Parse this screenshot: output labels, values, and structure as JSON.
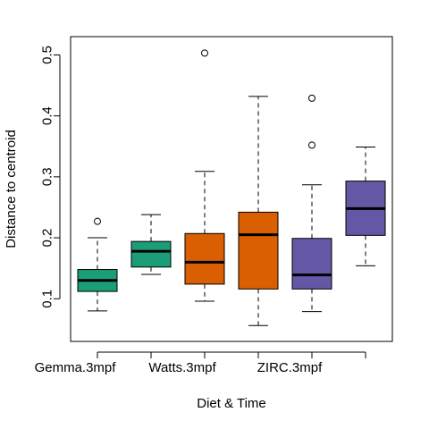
{
  "chart_data": {
    "type": "box",
    "title": "",
    "xlabel": "Diet & Time",
    "ylabel": "Distance to centroid",
    "ylim": [
      0.03,
      0.53
    ],
    "yticks": [
      0.1,
      0.2,
      0.3,
      0.4,
      0.5
    ],
    "ytick_labels": [
      "0.1",
      "0.2",
      "0.3",
      "0.4",
      "0.5"
    ],
    "xtick_labels": [
      {
        "label": "Gemma.3mpf",
        "position": 1.5
      },
      {
        "label": "Watts.3mpf",
        "position": 3.5
      },
      {
        "label": "ZIRC.3mpf",
        "position": 5.5
      }
    ],
    "grid": false,
    "boxes": [
      {
        "position": 1,
        "color": "#1b9e77",
        "whisker_low": 0.08,
        "q1": 0.112,
        "median": 0.13,
        "q3": 0.148,
        "whisker_high": 0.2,
        "outliers": [
          0.227
        ]
      },
      {
        "position": 2,
        "color": "#1b9e77",
        "whisker_low": 0.14,
        "q1": 0.152,
        "median": 0.178,
        "q3": 0.194,
        "whisker_high": 0.238,
        "outliers": []
      },
      {
        "position": 3,
        "color": "#d95f02",
        "whisker_low": 0.096,
        "q1": 0.124,
        "median": 0.16,
        "q3": 0.207,
        "whisker_high": 0.309,
        "outliers": [
          0.503
        ]
      },
      {
        "position": 4,
        "color": "#d95f02",
        "whisker_low": 0.056,
        "q1": 0.116,
        "median": 0.205,
        "q3": 0.242,
        "whisker_high": 0.432,
        "outliers": []
      },
      {
        "position": 5,
        "color": "#6457a6",
        "whisker_low": 0.079,
        "q1": 0.116,
        "median": 0.139,
        "q3": 0.199,
        "whisker_high": 0.287,
        "outliers": [
          0.352,
          0.429
        ]
      },
      {
        "position": 6,
        "color": "#6457a6",
        "whisker_low": 0.154,
        "q1": 0.204,
        "median": 0.248,
        "q3": 0.293,
        "whisker_high": 0.349,
        "outliers": []
      }
    ]
  }
}
